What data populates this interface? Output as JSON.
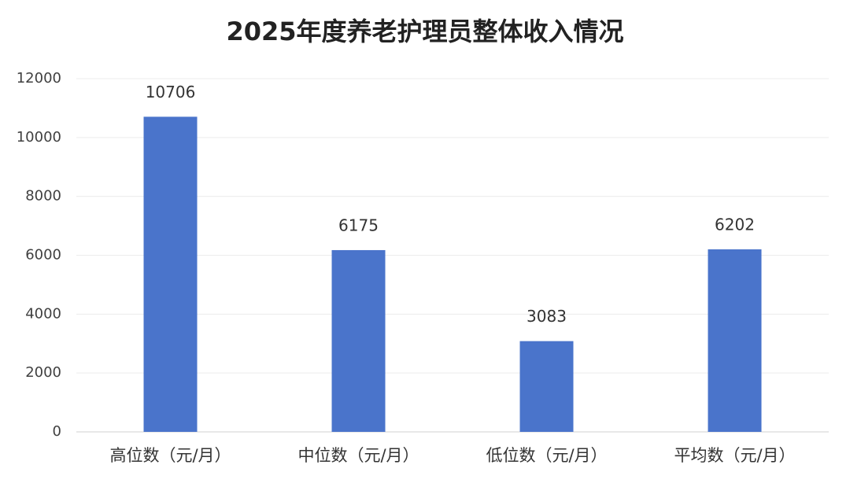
{
  "chart_data": {
    "type": "bar",
    "title": "2025年度养老护理员整体收入情况",
    "categories": [
      "高位数（元/月）",
      "中位数（元/月）",
      "低位数（元/月）",
      "平均数（元/月）"
    ],
    "values": [
      10706,
      6175,
      3083,
      6202
    ],
    "color": "#4a74cb",
    "ylim": [
      0,
      12000
    ],
    "yticks": [
      0,
      2000,
      4000,
      6000,
      8000,
      10000,
      12000
    ],
    "grid": true
  }
}
